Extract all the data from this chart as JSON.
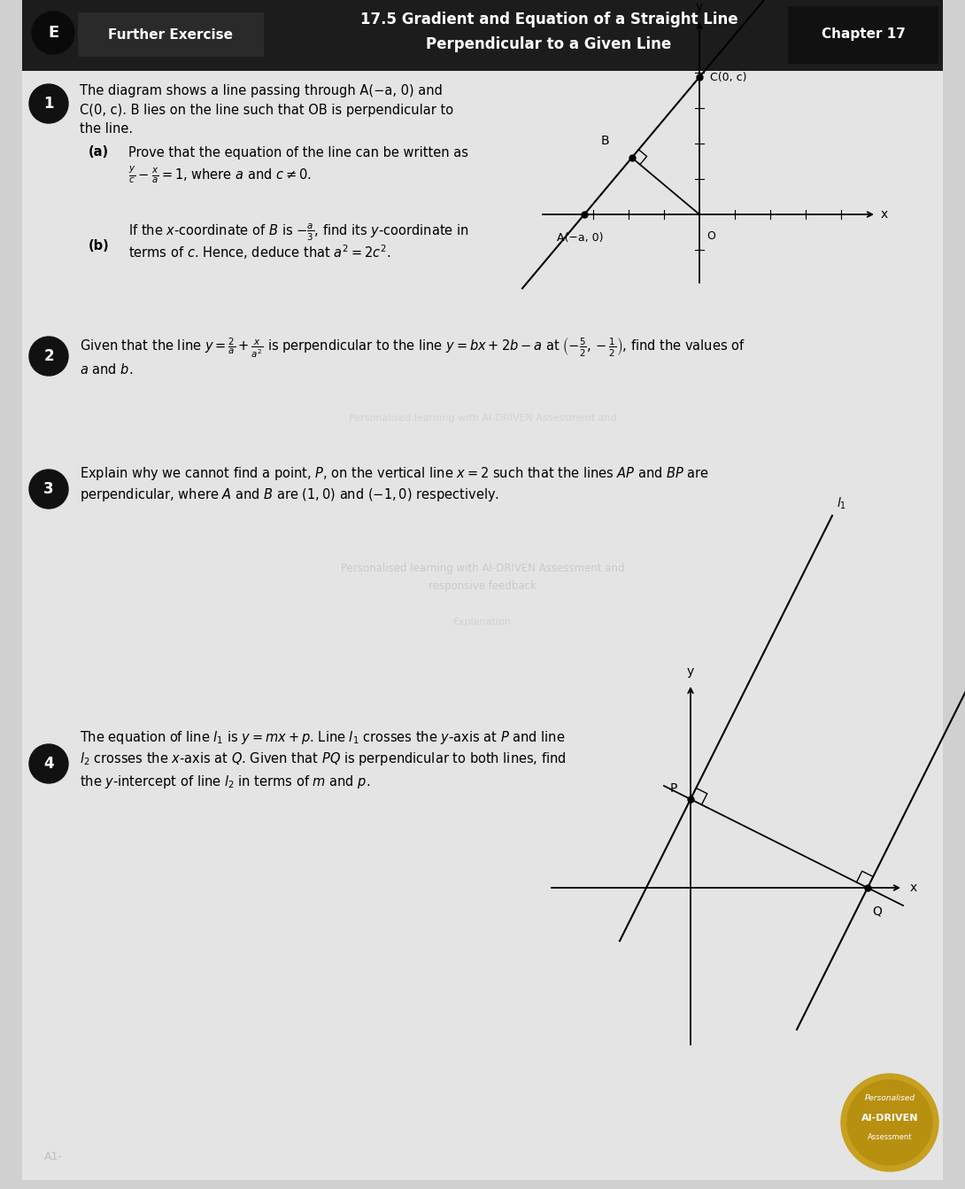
{
  "bg_color": "#d0d0d0",
  "page_bg": "#e8e8e8",
  "header_bg": "#1c1c1c",
  "header_dark2": "#2e2e2e",
  "chapter_bg": "#111111",
  "q_circle_color": "#111111",
  "title1": "17.5 Gradient and Equation of a Straight Line",
  "title2": "Perpendicular to a Given Line",
  "chapter_label": "Chapter 17",
  "fe_label": "Further Exercise",
  "e_label": "E",
  "q1_line1": "The diagram shows a line passing through A(−a, 0) and",
  "q1_line2": "C(0, c). B lies on the line such that OB is perpendicular to",
  "q1_line3": "the line.",
  "q1a_intro": "Prove that the equation of the line can be written as",
  "q1a_eq": "$\\frac{y}{c} - \\frac{x}{a} = 1$, where $a$ and $c \\neq 0$.",
  "q1b_intro1": "If the $x$-coordinate of $B$ is $-\\frac{a}{3}$, find its $y$-coordinate in",
  "q1b_intro2": "terms of $c$. Hence, deduce that $a^2 = 2c^2$.",
  "q2_line1": "Given that the line $y = \\frac{2}{a} + \\frac{x}{a^2}$ is perpendicular to the line $y = bx + 2b - a$ at $\\left(-\\frac{5}{2}, -\\frac{1}{2}\\right)$, find the values of",
  "q2_line2": "$a$ and $b$.",
  "q3_line1": "Explain why we cannot find a point, $P$, on the vertical line $x = 2$ such that the lines $AP$ and $BP$ are",
  "q3_line2": "perpendicular, where $A$ and $B$ are $(1, 0)$ and $(-1, 0)$ respectively.",
  "q4_line1": "The equation of line $l_1$ is $y = mx + p$. Line $l_1$ crosses the $y$-axis at $P$ and line",
  "q4_line2": "$l_2$ crosses the $x$-axis at $Q$. Given that $PQ$ is perpendicular to both lines, find",
  "q4_line3": "the $y$-intercept of line $l_2$ in terms of $m$ and $p$.",
  "watermark1": "Personalised learning with AI-DRIVEN Assessment and",
  "watermark2": "responsive feedback",
  "watermark3": "Explanation",
  "ai_badge_color1": "#c8a020",
  "ai_badge_color2": "#b89010",
  "badge_line1": "Personalised",
  "badge_line2": "AI-DRIVEN",
  "badge_line3": "Assessment"
}
